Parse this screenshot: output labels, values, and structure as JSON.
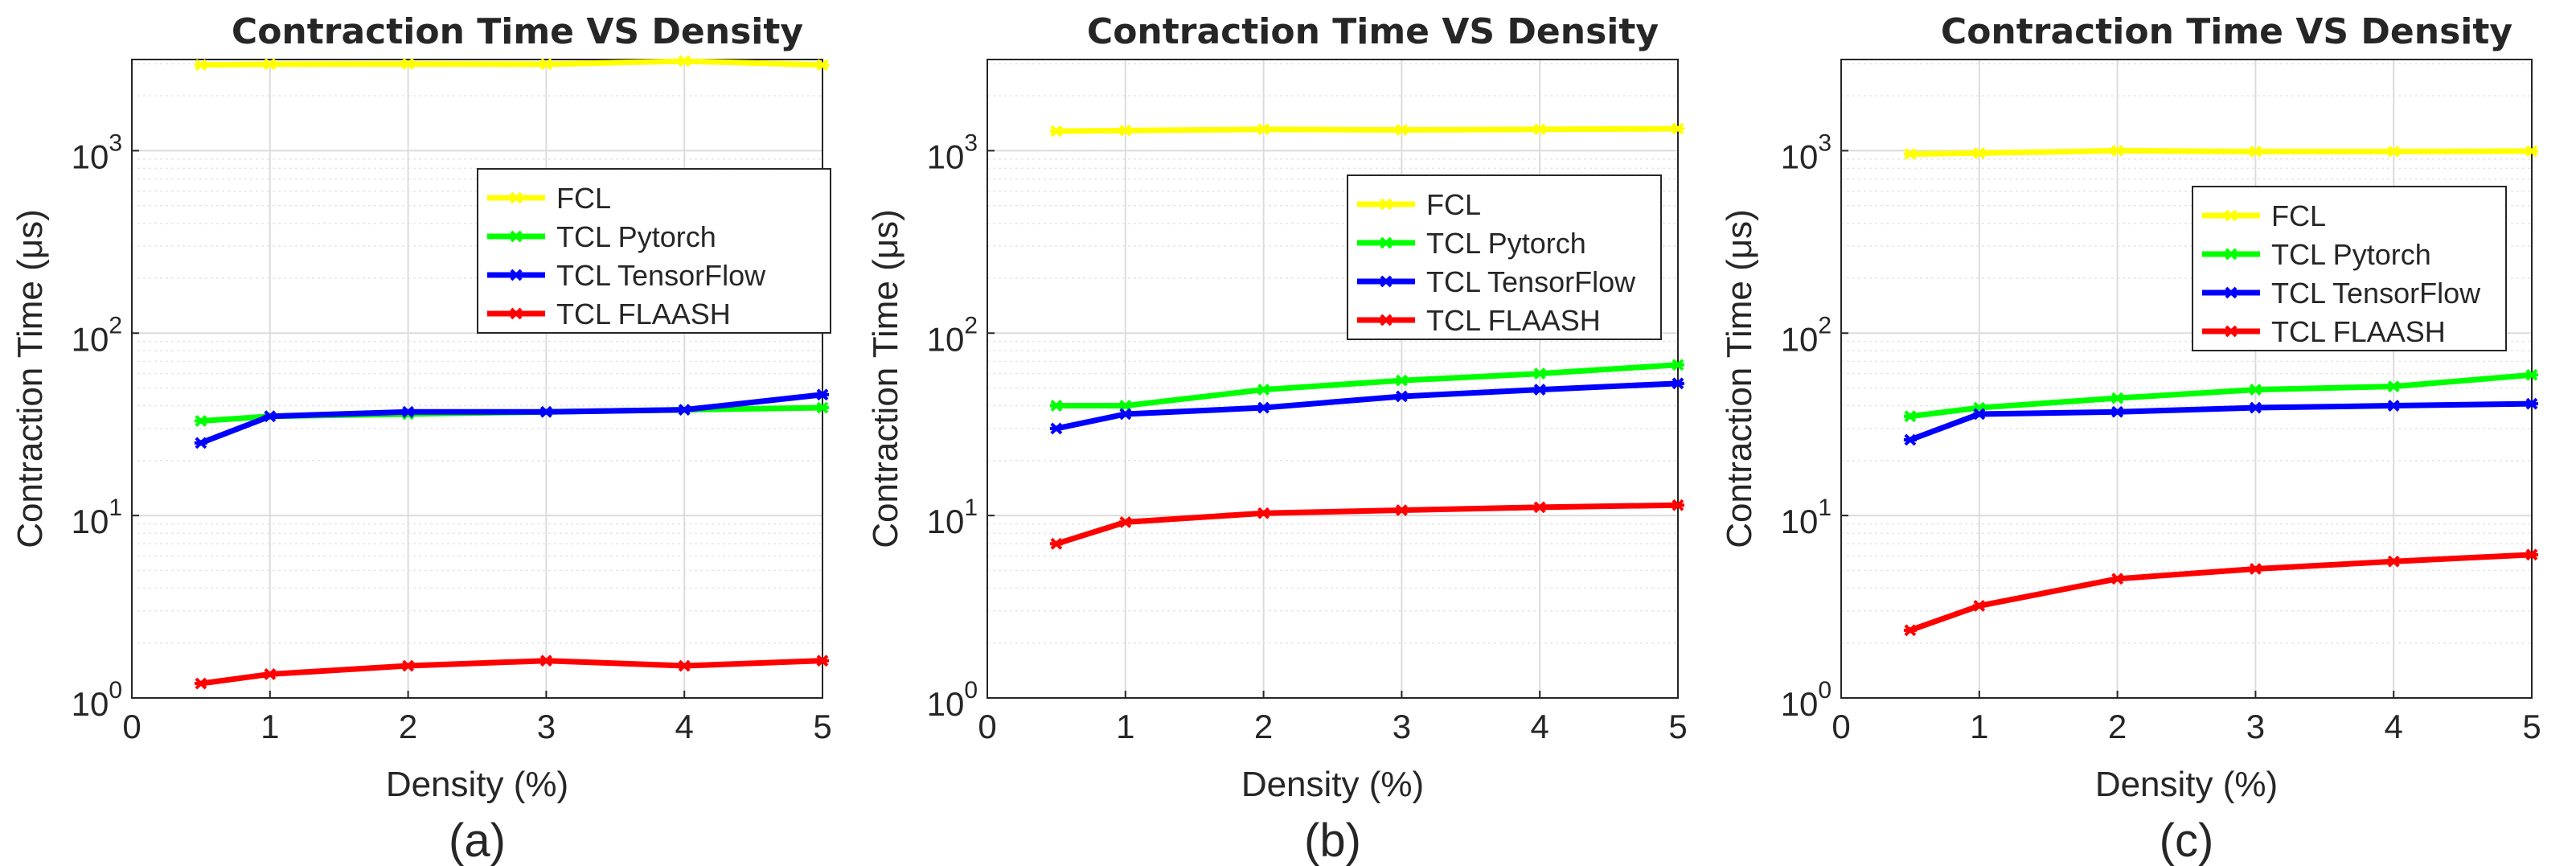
{
  "chart_data": [
    {
      "type": "line",
      "panel_label": "(a)",
      "title": "Contraction Time VS Density",
      "xlabel": "Density (%)",
      "ylabel": "Contraction Time (μs)",
      "xlim": [
        0,
        5
      ],
      "ylim": [
        1,
        3000
      ],
      "yscale": "log",
      "grid": true,
      "legend_position": "upper-right",
      "x_ticks": [
        0,
        1,
        2,
        3,
        4,
        5
      ],
      "y_ticks": [
        1,
        10,
        100,
        1000
      ],
      "x": [
        0.5,
        1,
        2,
        3,
        4,
        5
      ],
      "series": [
        {
          "name": "FCL",
          "color": "#ffff00",
          "values": [
            2950,
            2980,
            2990,
            2980,
            3100,
            2950
          ]
        },
        {
          "name": "TCL Pytorch",
          "color": "#00ff00",
          "values": [
            33,
            35,
            36,
            37,
            38,
            39
          ]
        },
        {
          "name": "TCL TensorFlow",
          "color": "#0000ff",
          "values": [
            25,
            35,
            37,
            37,
            38,
            46
          ]
        },
        {
          "name": "TCL FLAASH",
          "color": "#ff0000",
          "values": [
            1.2,
            1.35,
            1.5,
            1.6,
            1.5,
            1.6
          ]
        }
      ]
    },
    {
      "type": "line",
      "panel_label": "(b)",
      "title": "Contraction Time VS Density",
      "xlabel": "Density (%)",
      "ylabel": "Contraction Time (μs)",
      "xlim": [
        0,
        5
      ],
      "ylim": [
        1,
        3000
      ],
      "yscale": "log",
      "grid": true,
      "legend_position": "upper-right",
      "x_ticks": [
        0,
        1,
        2,
        3,
        4,
        5
      ],
      "y_ticks": [
        1,
        10,
        100,
        1000
      ],
      "x": [
        0.5,
        1,
        2,
        3,
        4,
        5
      ],
      "series": [
        {
          "name": "FCL",
          "color": "#ffff00",
          "values": [
            1280,
            1290,
            1310,
            1300,
            1310,
            1320
          ]
        },
        {
          "name": "TCL Pytorch",
          "color": "#00ff00",
          "values": [
            40,
            40,
            49,
            55,
            60,
            67
          ]
        },
        {
          "name": "TCL TensorFlow",
          "color": "#0000ff",
          "values": [
            30,
            36,
            39,
            45,
            49,
            53
          ]
        },
        {
          "name": "TCL FLAASH",
          "color": "#ff0000",
          "values": [
            7,
            9.2,
            10.3,
            10.7,
            11.1,
            11.4
          ]
        }
      ]
    },
    {
      "type": "line",
      "panel_label": "(c)",
      "title": "Contraction Time VS Density",
      "xlabel": "Density (%)",
      "ylabel": "Contraction Time (μs)",
      "xlim": [
        0,
        5
      ],
      "ylim": [
        1,
        3000
      ],
      "yscale": "log",
      "grid": true,
      "legend_position": "upper-right",
      "x_ticks": [
        0,
        1,
        2,
        3,
        4,
        5
      ],
      "y_ticks": [
        1,
        10,
        100,
        1000
      ],
      "x": [
        0.5,
        1,
        2,
        3,
        4,
        5
      ],
      "series": [
        {
          "name": "FCL",
          "color": "#ffff00",
          "values": [
            960,
            970,
            1000,
            990,
            990,
            995
          ]
        },
        {
          "name": "TCL Pytorch",
          "color": "#00ff00",
          "values": [
            35,
            39,
            44,
            49,
            51,
            59
          ]
        },
        {
          "name": "TCL TensorFlow",
          "color": "#0000ff",
          "values": [
            26,
            36,
            37,
            39,
            40,
            41
          ]
        },
        {
          "name": "TCL FLAASH",
          "color": "#ff0000",
          "values": [
            2.35,
            3.2,
            4.5,
            5.1,
            5.6,
            6.1
          ]
        }
      ]
    }
  ]
}
